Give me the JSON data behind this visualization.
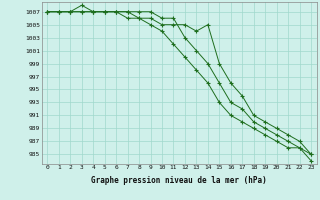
{
  "x": [
    0,
    1,
    2,
    3,
    4,
    5,
    6,
    7,
    8,
    9,
    10,
    11,
    12,
    13,
    14,
    15,
    16,
    17,
    18,
    19,
    20,
    21,
    22,
    23
  ],
  "line1": [
    1007,
    1007,
    1007,
    1007,
    1007,
    1007,
    1007,
    1006,
    1006,
    1005,
    1004,
    1002,
    1000,
    998,
    996,
    993,
    991,
    990,
    989,
    988,
    987,
    986,
    986,
    985
  ],
  "line2": [
    1007,
    1007,
    1007,
    1008,
    1007,
    1007,
    1007,
    1007,
    1006,
    1006,
    1005,
    1005,
    1005,
    1004,
    1005,
    999,
    996,
    994,
    991,
    990,
    989,
    988,
    987,
    985
  ],
  "line3": [
    1007,
    1007,
    1007,
    1007,
    1007,
    1007,
    1007,
    1007,
    1007,
    1007,
    1006,
    1006,
    1003,
    1001,
    999,
    996,
    993,
    992,
    990,
    989,
    988,
    987,
    986,
    984
  ],
  "bg_color": "#cff0ea",
  "grid_color": "#a0d8cc",
  "line_color": "#1e6e1e",
  "xlabel": "Graphe pression niveau de la mer (hPa)",
  "ylim_min": 983.5,
  "ylim_max": 1008.5,
  "yticks": [
    985,
    987,
    989,
    991,
    993,
    995,
    997,
    999,
    1001,
    1003,
    1005,
    1007
  ],
  "xticks": [
    0,
    1,
    2,
    3,
    4,
    5,
    6,
    7,
    8,
    9,
    10,
    11,
    12,
    13,
    14,
    15,
    16,
    17,
    18,
    19,
    20,
    21,
    22,
    23
  ],
  "figsize": [
    3.2,
    2.0
  ],
  "dpi": 100
}
